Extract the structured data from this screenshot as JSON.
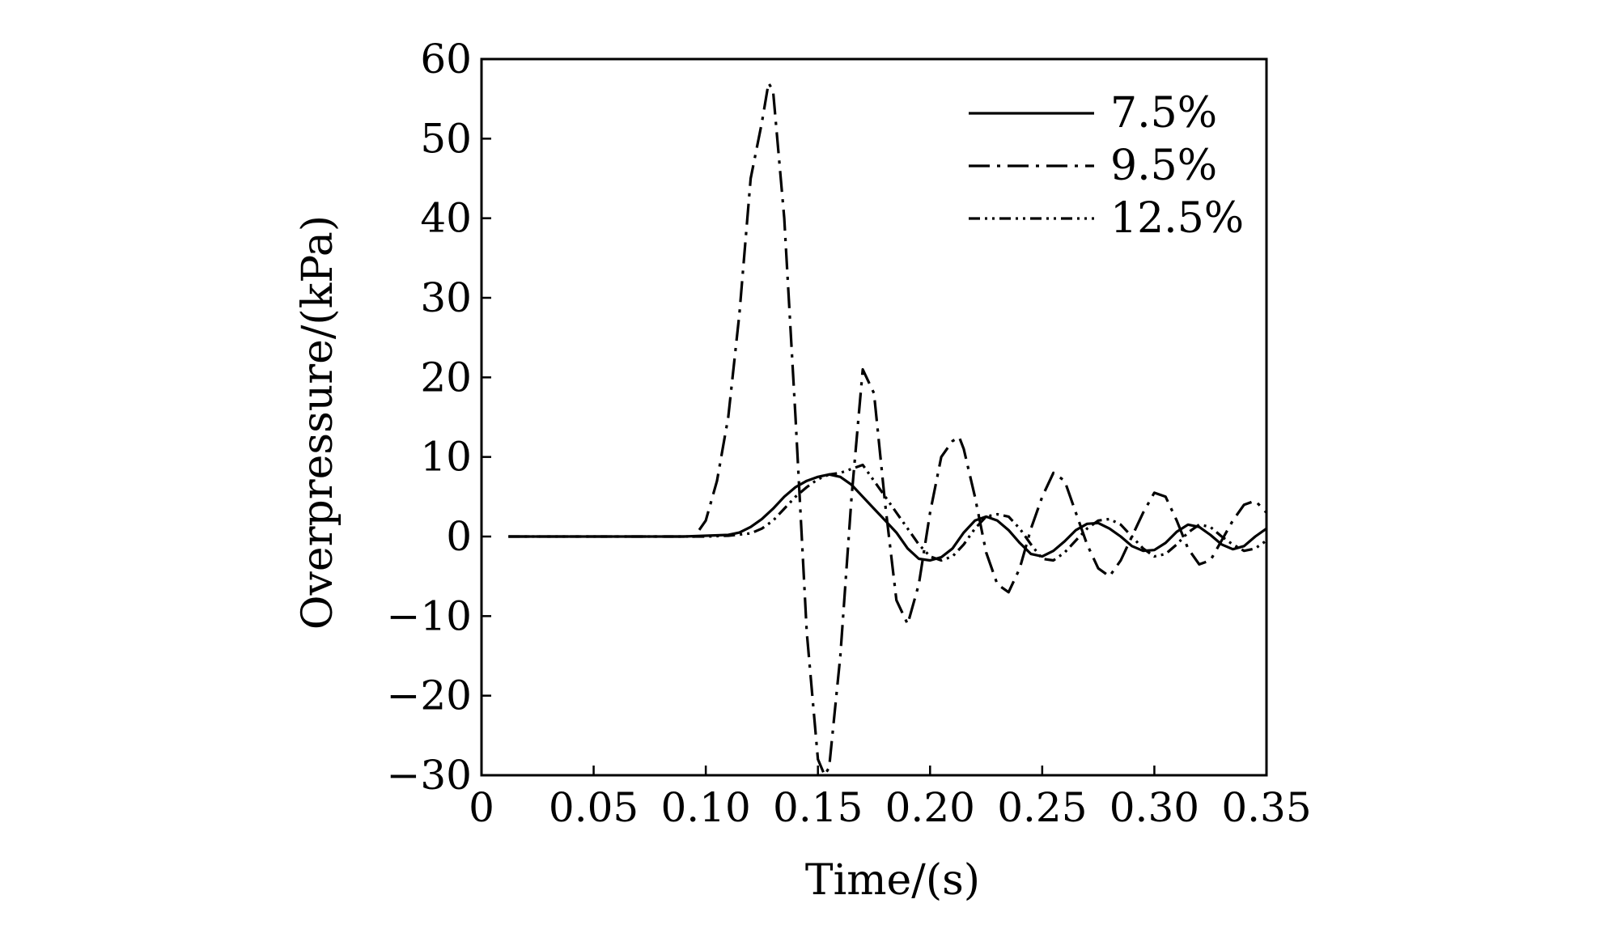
{
  "chart_data": {
    "type": "line",
    "title": "",
    "xlabel": "Time/(s)",
    "ylabel": "Overpressure/(kPa)",
    "xlim": [
      0,
      0.35
    ],
    "ylim": [
      -30,
      60
    ],
    "xticks": [
      0,
      0.05,
      0.1,
      0.15,
      0.2,
      0.25,
      0.3,
      0.35
    ],
    "xtick_labels": [
      "0",
      "0.05",
      "0.10",
      "0.15",
      "0.20",
      "0.25",
      "0.30",
      "0.35"
    ],
    "yticks": [
      60,
      50,
      40,
      30,
      20,
      10,
      0,
      -10,
      -20,
      -30
    ],
    "ytick_labels": [
      "60",
      "50",
      "40",
      "30",
      "20",
      "10",
      "0",
      "−10",
      "−20",
      "−30"
    ],
    "grid": false,
    "legend_position": "top-right",
    "series": [
      {
        "name": "7.5%",
        "style": "solid",
        "x": [
          0.012,
          0.05,
          0.09,
          0.11,
          0.115,
          0.12,
          0.125,
          0.13,
          0.135,
          0.14,
          0.145,
          0.15,
          0.155,
          0.16,
          0.165,
          0.17,
          0.175,
          0.18,
          0.185,
          0.19,
          0.195,
          0.2,
          0.205,
          0.21,
          0.215,
          0.22,
          0.225,
          0.23,
          0.235,
          0.24,
          0.245,
          0.25,
          0.255,
          0.26,
          0.265,
          0.27,
          0.275,
          0.28,
          0.285,
          0.29,
          0.295,
          0.3,
          0.305,
          0.31,
          0.315,
          0.32,
          0.325,
          0.33,
          0.335,
          0.34,
          0.345,
          0.35
        ],
        "values": [
          0,
          0,
          0,
          0.2,
          0.5,
          1.2,
          2.2,
          3.5,
          5.0,
          6.2,
          7.0,
          7.5,
          7.8,
          7.5,
          6.5,
          5.0,
          3.5,
          2.0,
          0.5,
          -1.5,
          -2.8,
          -3.0,
          -2.6,
          -1.5,
          0.5,
          2.0,
          2.5,
          2.0,
          0.8,
          -0.8,
          -2.2,
          -2.5,
          -1.8,
          -0.6,
          0.8,
          1.6,
          1.7,
          1.0,
          0,
          -1.2,
          -1.8,
          -1.7,
          -0.8,
          0.6,
          1.5,
          1.2,
          0.2,
          -1.0,
          -1.6,
          -1.2,
          0,
          1.0
        ]
      },
      {
        "name": "9.5%",
        "style": "dash-dot",
        "x": [
          0.012,
          0.05,
          0.09,
          0.095,
          0.1,
          0.105,
          0.11,
          0.115,
          0.12,
          0.125,
          0.128,
          0.13,
          0.135,
          0.14,
          0.145,
          0.15,
          0.153,
          0.155,
          0.16,
          0.165,
          0.17,
          0.175,
          0.18,
          0.185,
          0.19,
          0.195,
          0.2,
          0.205,
          0.21,
          0.213,
          0.215,
          0.22,
          0.225,
          0.23,
          0.235,
          0.24,
          0.245,
          0.25,
          0.255,
          0.26,
          0.265,
          0.27,
          0.275,
          0.28,
          0.285,
          0.29,
          0.295,
          0.3,
          0.305,
          0.31,
          0.315,
          0.32,
          0.325,
          0.33,
          0.335,
          0.34,
          0.345,
          0.35
        ],
        "values": [
          0,
          0,
          0,
          0,
          2,
          7,
          15,
          28,
          45,
          52,
          57,
          56,
          40,
          15,
          -12,
          -28,
          -30,
          -29,
          -15,
          5,
          21,
          18,
          4,
          -8,
          -11,
          -6,
          3,
          10,
          12,
          12.5,
          11,
          5,
          -2,
          -6,
          -7,
          -4,
          1,
          5,
          8,
          7,
          3,
          -1,
          -4,
          -5,
          -3,
          0,
          3,
          5.5,
          5,
          2,
          -1.5,
          -3.5,
          -3,
          -0.5,
          2,
          4,
          4.5,
          3
        ]
      },
      {
        "name": "12.5%",
        "style": "dash-dot-dot",
        "x": [
          0.012,
          0.05,
          0.1,
          0.11,
          0.12,
          0.125,
          0.13,
          0.135,
          0.14,
          0.145,
          0.15,
          0.155,
          0.16,
          0.165,
          0.17,
          0.175,
          0.18,
          0.185,
          0.19,
          0.195,
          0.2,
          0.205,
          0.21,
          0.215,
          0.22,
          0.225,
          0.23,
          0.235,
          0.24,
          0.245,
          0.25,
          0.255,
          0.26,
          0.265,
          0.27,
          0.275,
          0.28,
          0.285,
          0.29,
          0.295,
          0.3,
          0.305,
          0.31,
          0.315,
          0.32,
          0.325,
          0.33,
          0.335,
          0.34,
          0.345,
          0.35
        ],
        "values": [
          0,
          0,
          0,
          0.1,
          0.4,
          1.0,
          2.0,
          3.5,
          5.0,
          6.2,
          7.2,
          7.8,
          8.0,
          8.5,
          9.0,
          7.0,
          5.0,
          3.0,
          1.0,
          -1.0,
          -2.5,
          -3.0,
          -2.5,
          -1.0,
          1.0,
          2.5,
          2.8,
          2.5,
          1.0,
          -1.0,
          -2.8,
          -3.0,
          -2.0,
          -0.5,
          1.0,
          2.0,
          2.2,
          1.5,
          0,
          -1.5,
          -2.5,
          -2.2,
          -1.0,
          0.5,
          1.5,
          1.2,
          0,
          -1.0,
          -1.8,
          -1.5,
          -0.5
        ]
      }
    ]
  }
}
